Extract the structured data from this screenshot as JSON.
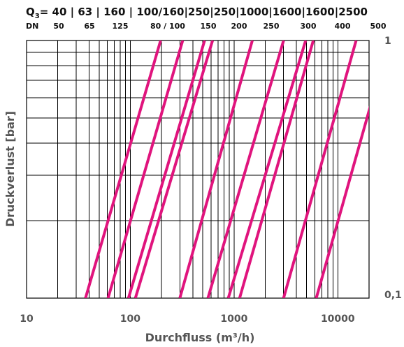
{
  "chart_data": {
    "type": "line",
    "title": "",
    "header": {
      "q3_prefix": "Q",
      "q3_sub": "3",
      "q3_values": "= 40 | 63 | 160 | 100/160|250|250|1000|1600|1600|2500",
      "dn_prefix": "DN",
      "dn_values": [
        "50",
        "65",
        "125",
        "80 / 100",
        "150",
        "200",
        "250",
        "300",
        "400",
        "500"
      ]
    },
    "xlabel": "Durchfluss (m³/h)",
    "ylabel": "Druckverlust [bar]",
    "x_scale": "log",
    "y_scale": "log",
    "xlim": [
      10,
      20000
    ],
    "ylim": [
      0.1,
      1
    ],
    "x_tick_labels": [
      "10",
      "100",
      "1000",
      "10000"
    ],
    "x_ticks": [
      10,
      100,
      1000,
      10000
    ],
    "y_tick_labels": [
      "0,1",
      "1"
    ],
    "y_ticks": [
      0.1,
      1
    ],
    "grid": true,
    "line_color": "#e0147d",
    "series": [
      {
        "x": [
          37,
          196
        ],
        "y": [
          0.1,
          1
        ]
      },
      {
        "x": [
          61,
          320
        ],
        "y": [
          0.1,
          1
        ]
      },
      {
        "x": [
          96,
          520
        ],
        "y": [
          0.1,
          1
        ]
      },
      {
        "x": [
          112,
          620
        ],
        "y": [
          0.1,
          1
        ]
      },
      {
        "x": [
          300,
          1500
        ],
        "y": [
          0.1,
          1
        ]
      },
      {
        "x": [
          560,
          3000
        ],
        "y": [
          0.1,
          1
        ]
      },
      {
        "x": [
          880,
          4900
        ],
        "y": [
          0.1,
          1
        ]
      },
      {
        "x": [
          1130,
          5800
        ],
        "y": [
          0.1,
          1
        ]
      },
      {
        "x": [
          3000,
          15000
        ],
        "y": [
          0.1,
          1
        ]
      },
      {
        "x": [
          6200,
          31000
        ],
        "y": [
          0.1,
          1
        ]
      }
    ]
  }
}
